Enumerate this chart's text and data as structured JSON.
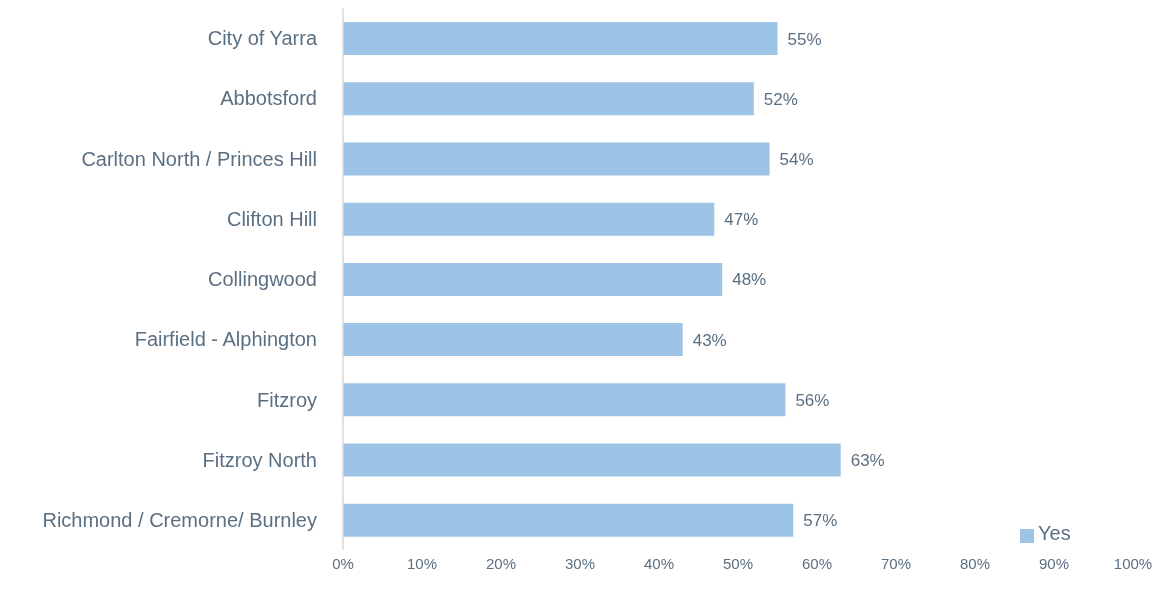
{
  "chart_data": {
    "type": "bar",
    "orientation": "horizontal",
    "categories": [
      "City of Yarra",
      "Abbotsford",
      "Carlton North / Princes Hill",
      "Clifton Hill",
      "Collingwood",
      "Fairfield - Alphington",
      "Fitzroy",
      "Fitzroy North",
      "Richmond / Cremorne/ Burnley"
    ],
    "series": [
      {
        "name": "Yes",
        "color": "#9dc3e6",
        "values": [
          55,
          52,
          54,
          47,
          48,
          43,
          56,
          63,
          57
        ],
        "value_labels": [
          "55%",
          "52%",
          "54%",
          "47%",
          "48%",
          "43%",
          "56%",
          "63%",
          "57%"
        ]
      }
    ],
    "xlim": [
      0,
      100
    ],
    "xticks": [
      {
        "value": 0,
        "label": "0%"
      },
      {
        "value": 10,
        "label": "10%"
      },
      {
        "value": 20,
        "label": "20%"
      },
      {
        "value": 30,
        "label": "30%"
      },
      {
        "value": 40,
        "label": "40%"
      },
      {
        "value": 50,
        "label": "50%"
      },
      {
        "value": 60,
        "label": "60%"
      },
      {
        "value": 70,
        "label": "70%"
      },
      {
        "value": 80,
        "label": "80%"
      },
      {
        "value": 90,
        "label": "90%"
      },
      {
        "value": 100,
        "label": "100%"
      }
    ],
    "grid": false,
    "legend": "bottom right"
  }
}
